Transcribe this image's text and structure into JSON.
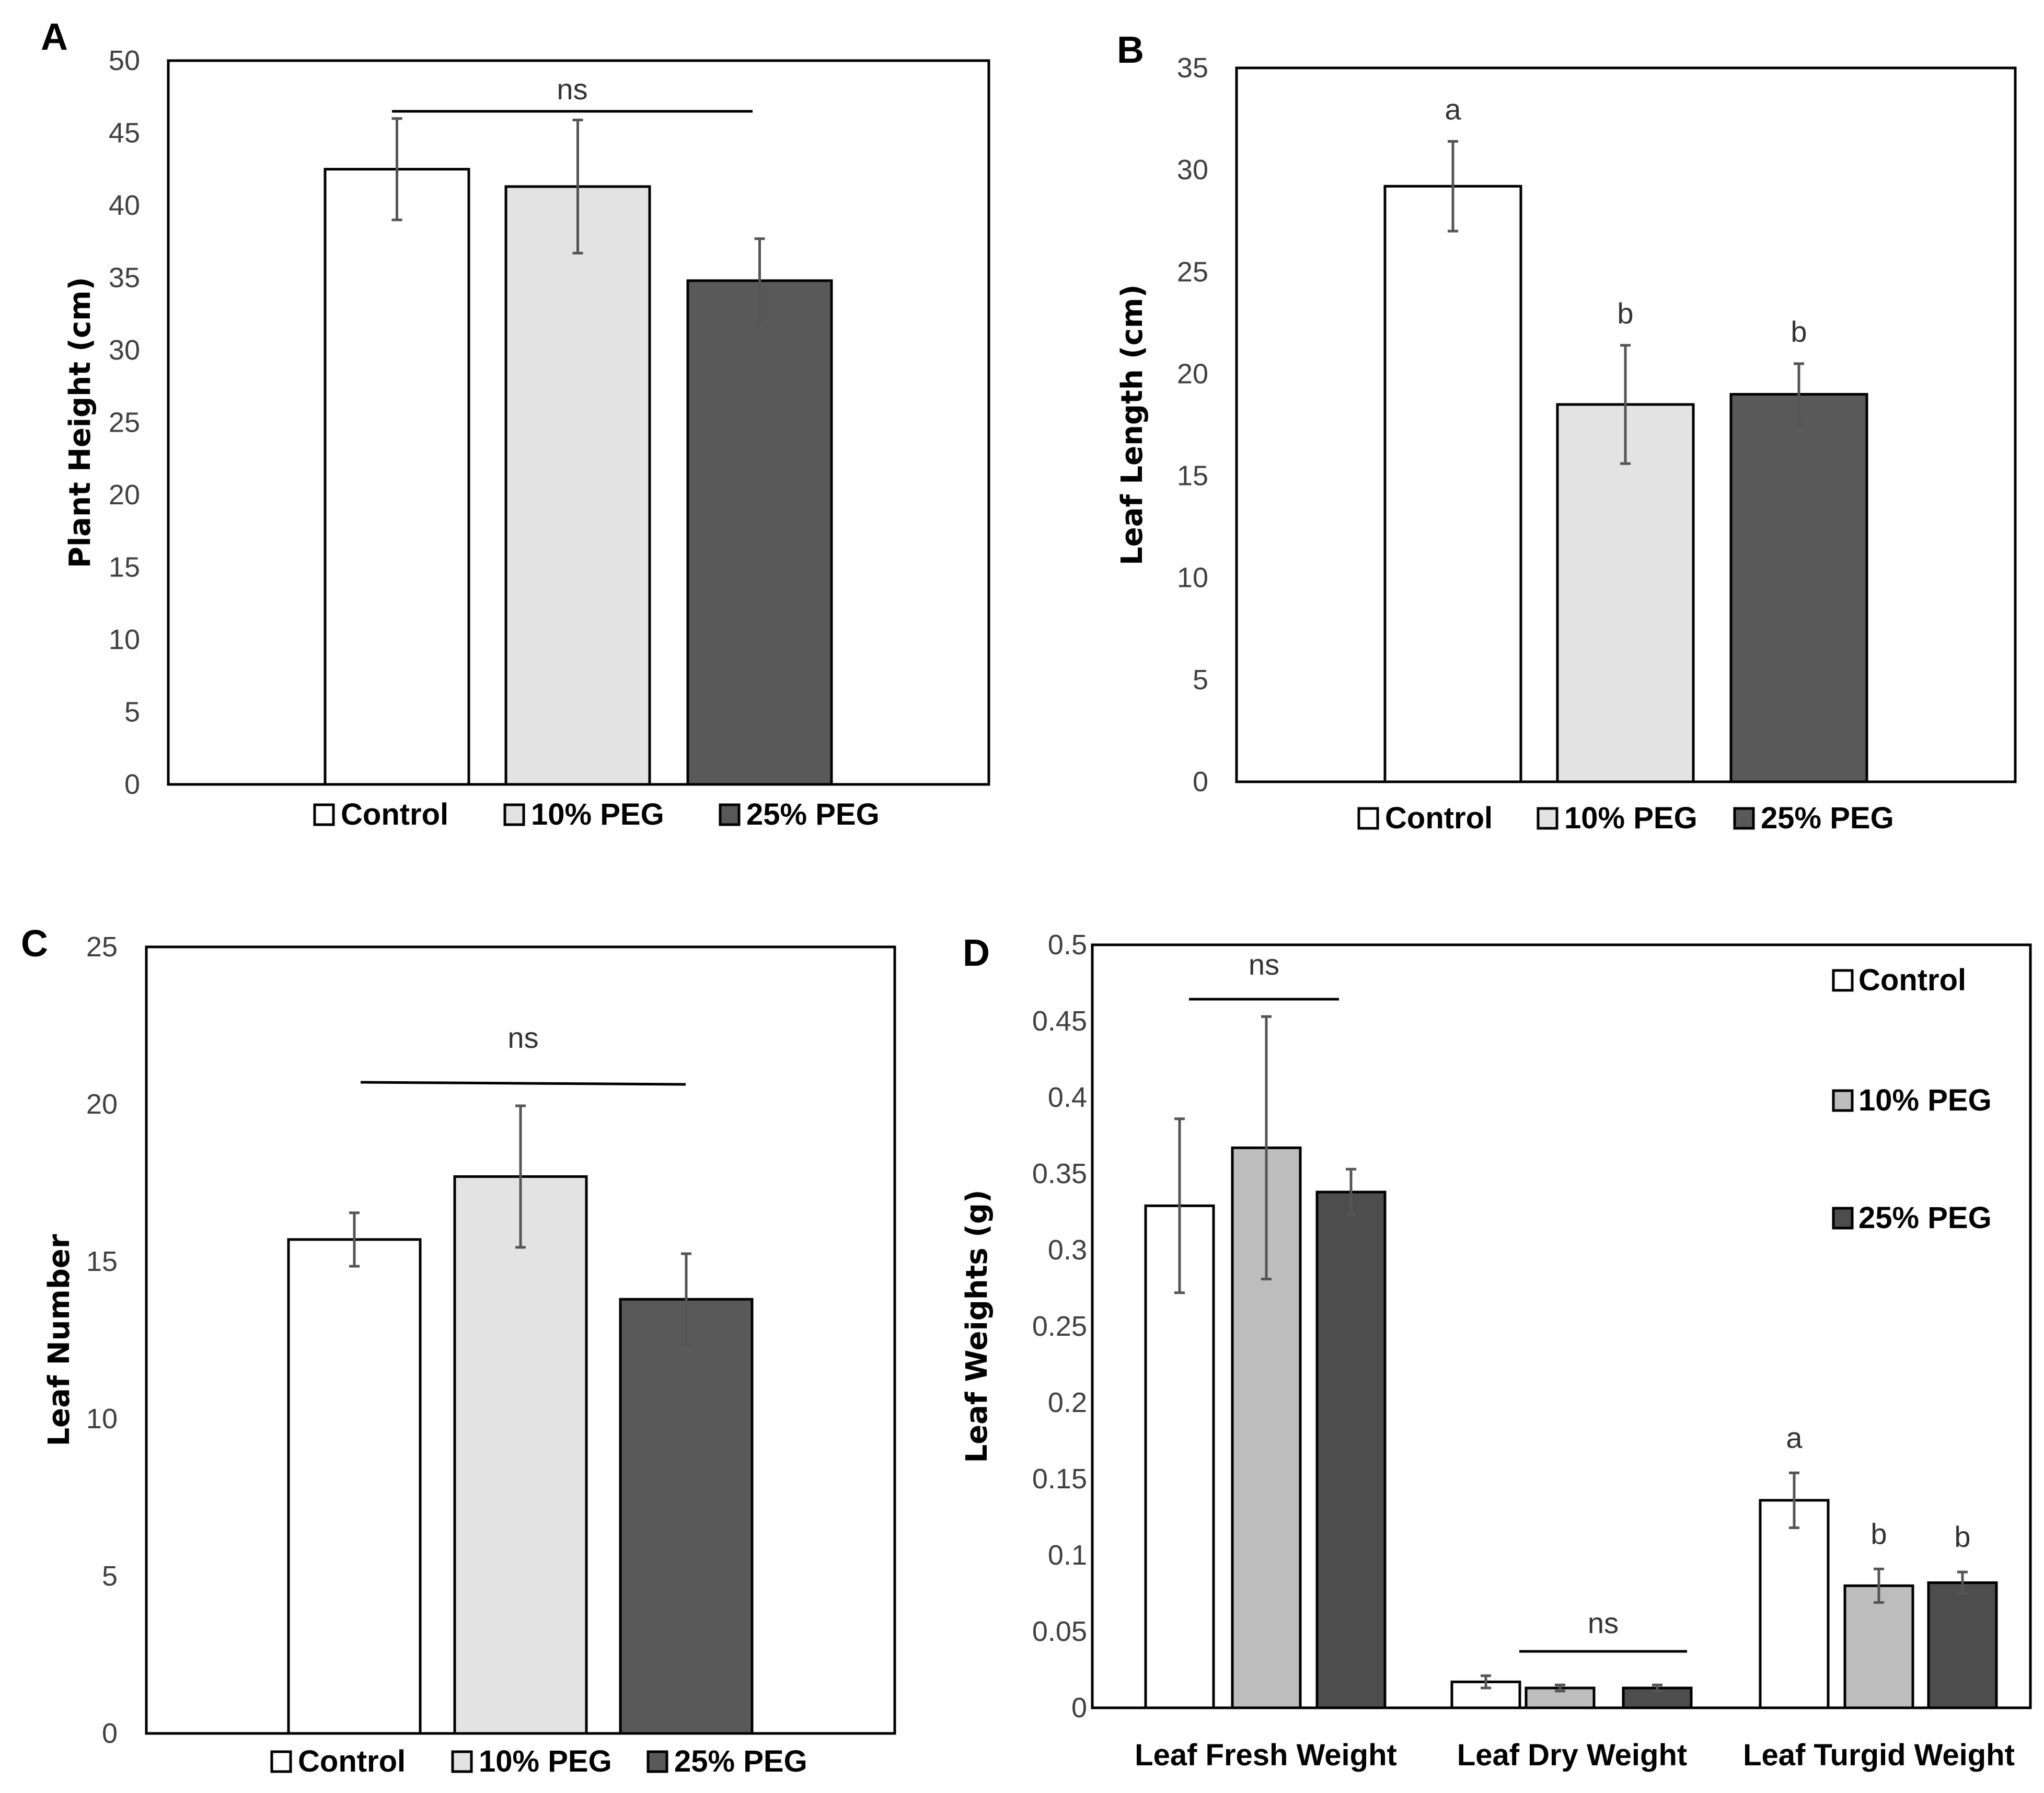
{
  "colors": {
    "control": "#ffffff",
    "peg10": "#e3e3e3",
    "peg25": "#595959",
    "peg10_d": "#bdbdbd",
    "peg25_d": "#4d4d4d",
    "axis": "#000000",
    "errbar": "#555555"
  },
  "chart_data": [
    {
      "panel": "A",
      "type": "bar",
      "ylabel": "Plant Height (cm)",
      "ylim": [
        0,
        50
      ],
      "yticks": [
        "0",
        "5",
        "10",
        "15",
        "20",
        "25",
        "30",
        "35",
        "40",
        "45",
        "50"
      ],
      "categories": [
        "Control",
        "10% PEG",
        "25% PEG"
      ],
      "values": [
        42.5,
        41.3,
        34.8
      ],
      "errors": [
        3.5,
        4.6,
        2.9
      ],
      "legend": [
        "Control",
        "10% PEG",
        "25% PEG"
      ],
      "annotations": [
        {
          "text": "ns",
          "type": "bracket"
        }
      ]
    },
    {
      "panel": "B",
      "type": "bar",
      "ylabel": "Leaf Length (cm)",
      "ylim": [
        0,
        35
      ],
      "yticks": [
        "0",
        "5",
        "10",
        "15",
        "20",
        "25",
        "30",
        "35"
      ],
      "categories": [
        "Control",
        "10% PEG",
        "25% PEG"
      ],
      "values": [
        29.2,
        18.5,
        19.0
      ],
      "errors": [
        2.2,
        2.9,
        1.5
      ],
      "letters": [
        "a",
        "b",
        "b"
      ],
      "legend": [
        "Control",
        "10% PEG",
        "25% PEG"
      ]
    },
    {
      "panel": "C",
      "type": "bar",
      "ylabel": "Leaf Number",
      "ylim": [
        0,
        25
      ],
      "yticks": [
        "0",
        "5",
        "10",
        "15",
        "20",
        "25"
      ],
      "categories": [
        "Control",
        "10% PEG",
        "25% PEG"
      ],
      "values": [
        15.7,
        17.7,
        13.8
      ],
      "errors": [
        0.85,
        2.25,
        1.45
      ],
      "legend": [
        "Control",
        "10% PEG",
        "25% PEG"
      ],
      "annotations": [
        {
          "text": "ns",
          "type": "bracket"
        }
      ]
    },
    {
      "panel": "D",
      "type": "bar",
      "ylabel": "Leaf  Weights (g)",
      "ylim": [
        0,
        0.5
      ],
      "yticks": [
        "0",
        "0.05",
        "0.1",
        "0.15",
        "0.2",
        "0.25",
        "0.3",
        "0.35",
        "0.4",
        "0.45",
        "0.5"
      ],
      "categories": [
        "Leaf Fresh Weight",
        "Leaf Dry Weight",
        "Leaf Turgid Weight"
      ],
      "series": [
        {
          "name": "Control",
          "values": [
            0.329,
            0.017,
            0.136
          ],
          "errors": [
            0.057,
            0.004,
            0.018
          ]
        },
        {
          "name": "10% PEG",
          "values": [
            0.367,
            0.013,
            0.08
          ],
          "errors": [
            0.086,
            0.002,
            0.011
          ]
        },
        {
          "name": "25% PEG",
          "values": [
            0.338,
            0.013,
            0.082
          ],
          "errors": [
            0.015,
            0.002,
            0.007
          ]
        }
      ],
      "letters": [
        [
          "",
          "",
          ""
        ],
        [
          "",
          "",
          ""
        ],
        [
          "a",
          "b",
          "b"
        ]
      ],
      "legend": [
        "Control",
        "10% PEG",
        "25% PEG"
      ],
      "annotations": [
        {
          "text": "ns",
          "type": "bracket",
          "group": "Leaf Fresh Weight"
        },
        {
          "text": "ns",
          "type": "bracket",
          "group": "Leaf Dry Weight"
        }
      ]
    }
  ]
}
